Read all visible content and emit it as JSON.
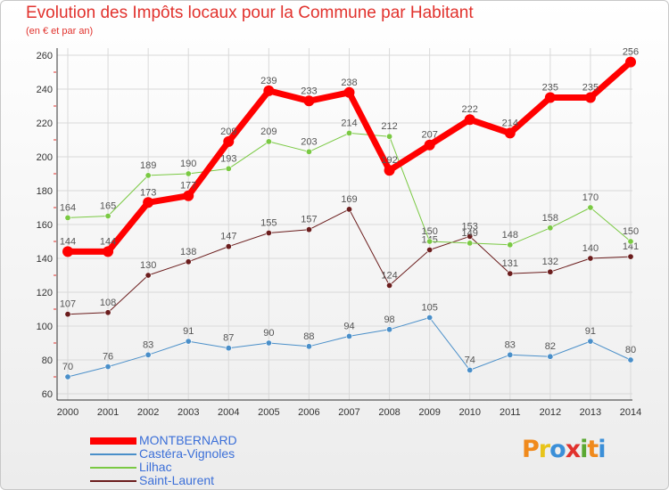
{
  "chart_title": "Evolution des Impôts locaux pour la Commune par Habitant",
  "chart_subtitle": "(en € et par an)",
  "logo_text": "Proxiti",
  "logo_colors": [
    "#f08a1c",
    "#e8c41a",
    "#3b8fd8",
    "#e1322d",
    "#5aa832",
    "#f08a1c",
    "#3b8fd8"
  ],
  "colors": {
    "axis": "#333333",
    "grid": "#d9d9d9",
    "tick_mark": "#e1322d",
    "label": "#555555"
  },
  "chart_data": {
    "type": "line",
    "title": "Evolution des Impôts locaux pour la Commune par Habitant",
    "ylabel": "(en € et par an)",
    "xlabel": "",
    "ylim": [
      60,
      260
    ],
    "yticks": [
      60,
      80,
      100,
      120,
      140,
      160,
      180,
      200,
      220,
      240,
      260
    ],
    "categories": [
      "2000",
      "2001",
      "2002",
      "2003",
      "2004",
      "2005",
      "2006",
      "2007",
      "2008",
      "2009",
      "2010",
      "2011",
      "2012",
      "2013",
      "2014"
    ],
    "grid": true,
    "series": [
      {
        "name": "Castéra-Vignoles",
        "color": "#4a8fc9",
        "fill": "#4a8fc9",
        "width": 1,
        "values": [
          70,
          76,
          83,
          91,
          87,
          90,
          88,
          94,
          98,
          105,
          74,
          83,
          82,
          91,
          80
        ]
      },
      {
        "name": "Saint-Laurent",
        "color": "#6b1d1d",
        "fill": "#6b1d1d",
        "width": 1,
        "values": [
          107,
          108,
          130,
          138,
          147,
          155,
          157,
          169,
          124,
          145,
          153,
          131,
          132,
          140,
          141
        ]
      },
      {
        "name": "Lilhac",
        "color": "#7ac943",
        "fill": "#7ac943",
        "width": 1,
        "values": [
          164,
          165,
          189,
          190,
          193,
          209,
          203,
          214,
          212,
          150,
          149,
          148,
          158,
          170,
          150
        ]
      },
      {
        "name": "MONTBERNARD",
        "color": "#ff0000",
        "fill": "#ff0000",
        "width": 7,
        "values": [
          144,
          144,
          173,
          177,
          209,
          239,
          233,
          238,
          192,
          207,
          222,
          214,
          235,
          235,
          256
        ]
      }
    ],
    "legend": [
      "MONTBERNARD",
      "Castéra-Vignoles",
      "Lilhac",
      "Saint-Laurent"
    ]
  }
}
